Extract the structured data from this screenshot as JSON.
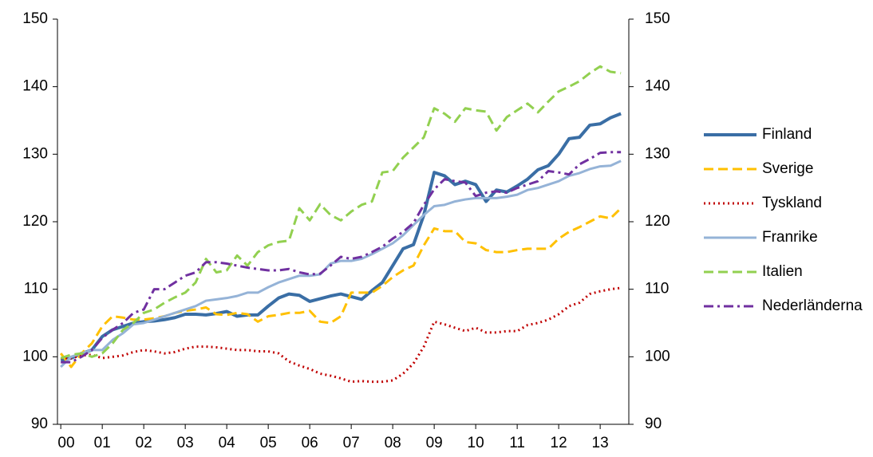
{
  "chart_data": {
    "type": "line",
    "x": [
      0,
      0.25,
      0.5,
      0.75,
      1,
      1.25,
      1.5,
      1.75,
      2,
      2.25,
      2.5,
      2.75,
      3,
      3.25,
      3.5,
      3.75,
      4,
      4.25,
      4.5,
      4.75,
      5,
      5.25,
      5.5,
      5.75,
      6,
      6.25,
      6.5,
      6.75,
      7,
      7.25,
      7.5,
      7.75,
      8,
      8.25,
      8.5,
      8.75,
      9,
      9.25,
      9.5,
      9.75,
      10,
      10.25,
      10.5,
      10.75,
      11,
      11.25,
      11.5,
      11.75,
      12,
      12.25,
      12.5,
      12.75,
      13,
      13.25,
      13.5
    ],
    "xlim": [
      -0.08,
      13.69
    ],
    "xticks": [
      {
        "value": 0,
        "label": "00"
      },
      {
        "value": 1,
        "label": "01"
      },
      {
        "value": 2,
        "label": "02"
      },
      {
        "value": 3,
        "label": "03"
      },
      {
        "value": 4,
        "label": "04"
      },
      {
        "value": 5,
        "label": "05"
      },
      {
        "value": 6,
        "label": "06"
      },
      {
        "value": 7,
        "label": "07"
      },
      {
        "value": 8,
        "label": "08"
      },
      {
        "value": 9,
        "label": "09"
      },
      {
        "value": 10,
        "label": "10"
      },
      {
        "value": 11,
        "label": "11"
      },
      {
        "value": 12,
        "label": "12"
      },
      {
        "value": 13,
        "label": "13"
      }
    ],
    "ylim": [
      90,
      150
    ],
    "yticks": [
      90,
      100,
      110,
      120,
      130,
      140,
      150
    ],
    "y2lim": [
      90,
      150
    ],
    "y2ticks": [
      90,
      100,
      110,
      120,
      130,
      140,
      150
    ],
    "grid": false,
    "legend": "right",
    "series": [
      {
        "name": "Finland",
        "color": "#3a6ea5",
        "style": "thick",
        "values": [
          99.5,
          99.8,
          100.5,
          101,
          103,
          104,
          104.5,
          105,
          105.2,
          105.3,
          105.5,
          105.8,
          106.3,
          106.3,
          106.2,
          106.4,
          106.7,
          106,
          106.2,
          106.2,
          107.5,
          108.7,
          109.3,
          109.1,
          108.2,
          108.6,
          109,
          109.3,
          108.9,
          108.5,
          109.8,
          111,
          113.5,
          116,
          116.6,
          121,
          127.3,
          126.8,
          125.5,
          126,
          125.5,
          123,
          124.7,
          124.4,
          125.3,
          126.3,
          127.7,
          128.3,
          130,
          132.3,
          132.5,
          134.3,
          134.5,
          135.4,
          136
        ]
      },
      {
        "name": "Sverige",
        "color": "#ffc000",
        "style": "dashed",
        "values": [
          100.5,
          98.5,
          100.5,
          102,
          104.5,
          106,
          105.8,
          105.5,
          105.5,
          105.7,
          106,
          106.5,
          106.8,
          107,
          107.3,
          106.3,
          106.2,
          106.5,
          106.3,
          105.2,
          106,
          106.2,
          106.5,
          106.5,
          106.8,
          105.2,
          105,
          106,
          109.5,
          109.5,
          109.5,
          110.5,
          111.8,
          112.8,
          113.5,
          116.5,
          119,
          118.6,
          118.6,
          117,
          116.8,
          115.8,
          115.5,
          115.5,
          115.8,
          116,
          116,
          116,
          117.5,
          118.5,
          119.2,
          120,
          120.8,
          120.5,
          122
        ]
      },
      {
        "name": "Tyskland",
        "color": "#c00000",
        "style": "dotted",
        "values": [
          99.8,
          99.8,
          100.2,
          100.3,
          99.8,
          100,
          100.2,
          100.7,
          101,
          100.8,
          100.5,
          100.7,
          101.2,
          101.5,
          101.5,
          101.4,
          101.2,
          101,
          101,
          100.8,
          100.8,
          100.5,
          99.3,
          98.7,
          98.2,
          97.5,
          97.2,
          96.8,
          96.3,
          96.4,
          96.3,
          96.3,
          96.5,
          97.5,
          99,
          101.5,
          105.2,
          104.8,
          104.3,
          103.8,
          104.3,
          103.6,
          103.6,
          103.8,
          103.8,
          104.7,
          105,
          105.5,
          106.3,
          107.5,
          108,
          109.3,
          109.7,
          110,
          110.2
        ]
      },
      {
        "name": "Franrike",
        "color": "#95b3d7",
        "style": "solid",
        "values": [
          98.5,
          100,
          100.5,
          101,
          101,
          102.5,
          103.5,
          104.8,
          105,
          105.5,
          106,
          106.5,
          107,
          107.5,
          108.3,
          108.5,
          108.7,
          109,
          109.5,
          109.5,
          110.3,
          111,
          111.5,
          112,
          112,
          112.2,
          113.8,
          114.2,
          114.2,
          114.5,
          115.2,
          116,
          116.8,
          118,
          119.5,
          121,
          122.3,
          122.5,
          123,
          123.3,
          123.5,
          123.5,
          123.5,
          123.7,
          124,
          124.7,
          125,
          125.5,
          126,
          126.8,
          127.2,
          127.8,
          128.2,
          128.3,
          129
        ]
      },
      {
        "name": "Italien",
        "color": "#92d050",
        "style": "dashed",
        "values": [
          99.8,
          100.3,
          100.5,
          100,
          100.5,
          102,
          104,
          105,
          106.5,
          107,
          108,
          108.8,
          109.5,
          111,
          114.5,
          112.5,
          112.8,
          115,
          113.5,
          115.5,
          116.5,
          117,
          117.2,
          122,
          120.2,
          122.6,
          121,
          120.2,
          121.5,
          122.5,
          123,
          127.3,
          127.5,
          129.5,
          131,
          132.5,
          136.8,
          136,
          134.8,
          136.8,
          136.5,
          136.3,
          133.5,
          135.5,
          136.5,
          137.5,
          136.2,
          137.8,
          139.3,
          140,
          140.8,
          142,
          143,
          142.2,
          142
        ]
      },
      {
        "name": "Nederländerna",
        "color": "#7030a0",
        "style": "dashdot",
        "values": [
          99.2,
          99.2,
          100,
          101,
          102.8,
          104,
          105,
          106.5,
          107,
          110,
          110,
          111,
          112,
          112.5,
          114,
          114,
          113.8,
          113.5,
          113.2,
          113,
          112.8,
          112.8,
          113,
          112.5,
          112.2,
          112.3,
          113.5,
          114.8,
          114.5,
          114.8,
          115.5,
          116.3,
          117.5,
          118.5,
          119.8,
          122.5,
          124.8,
          126.3,
          126,
          125.8,
          123.8,
          124.3,
          124.5,
          124.3,
          125,
          125.5,
          126,
          127.5,
          127.3,
          127,
          128.5,
          129.3,
          130.2,
          130.3,
          130.3
        ]
      }
    ]
  }
}
